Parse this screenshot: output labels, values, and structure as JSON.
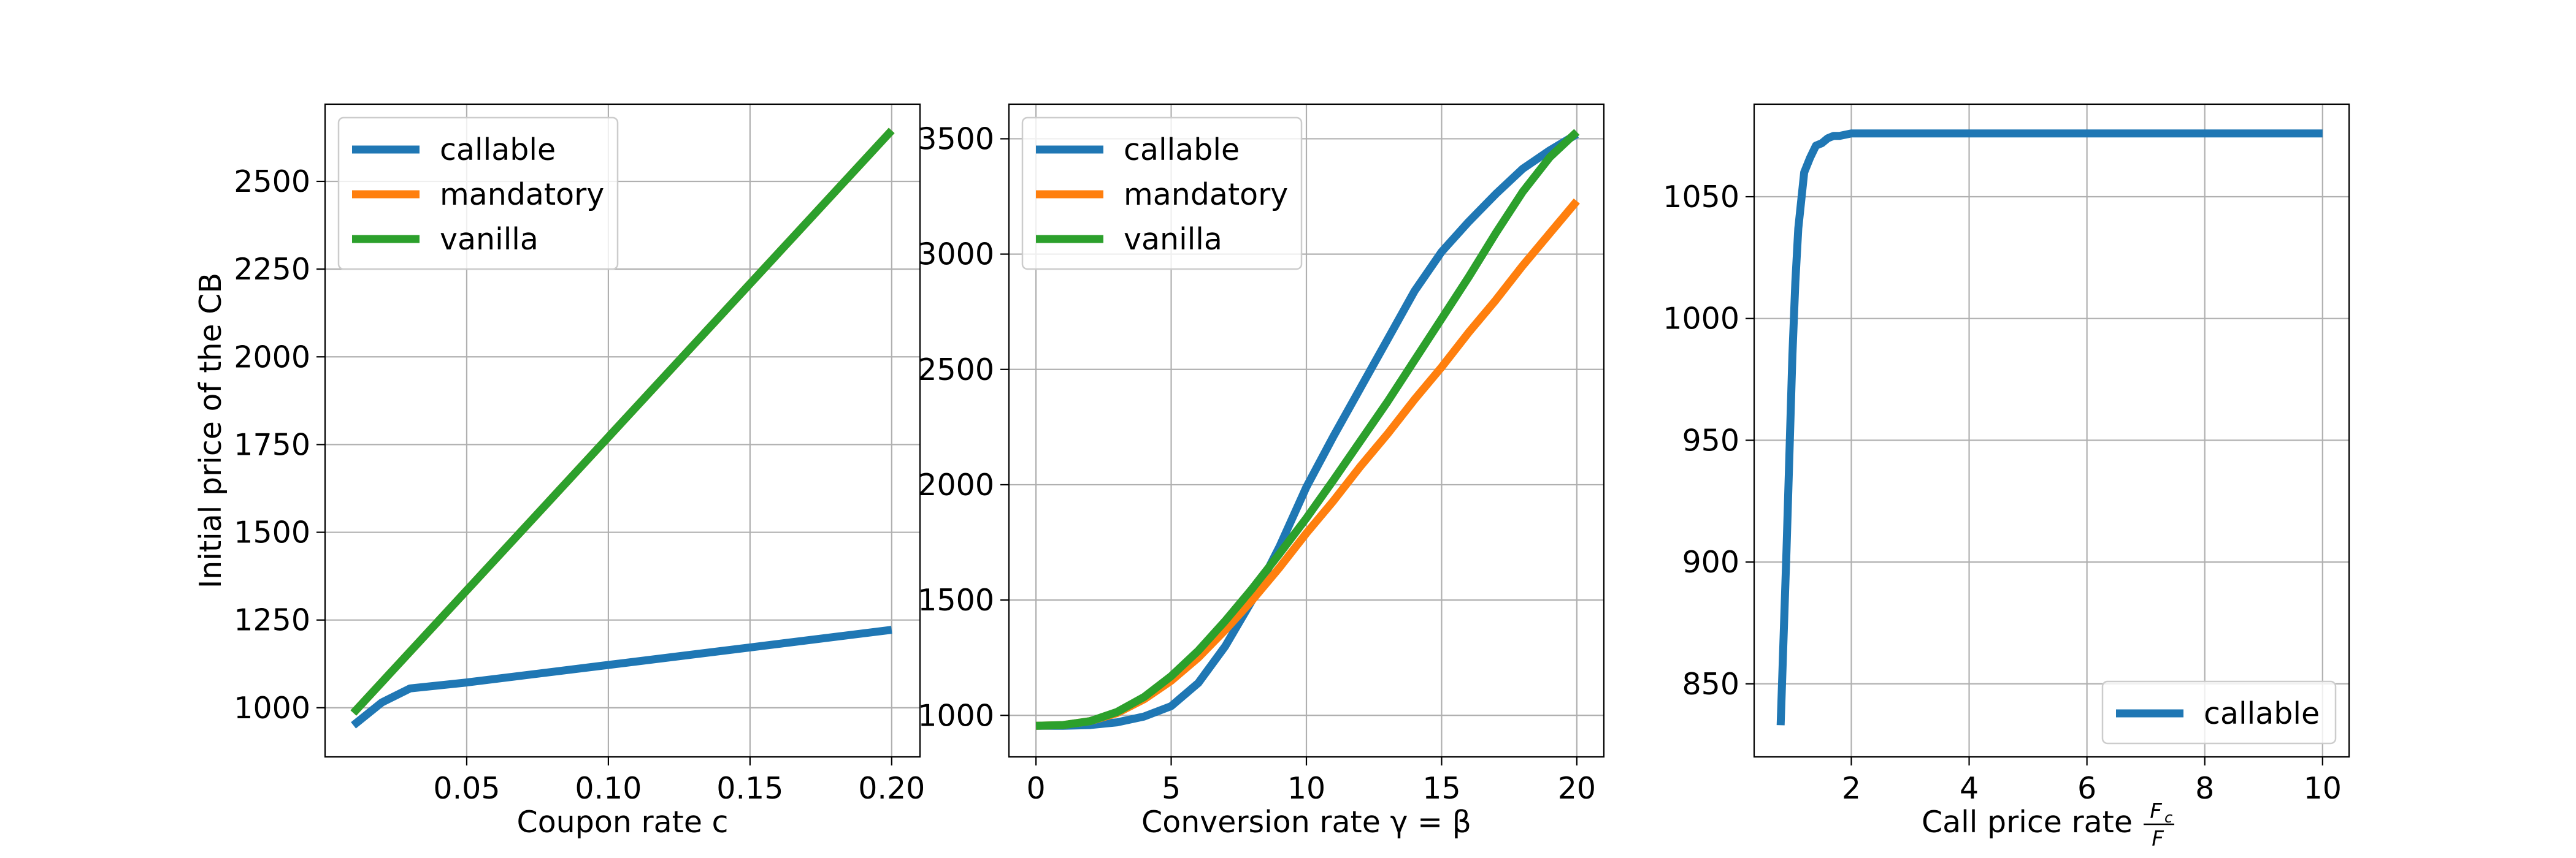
{
  "chart_data": [
    {
      "type": "line",
      "xlabel": "Coupon rate c",
      "ylabel": "Initial price of the CB",
      "xlim": [
        0.0,
        0.21
      ],
      "ylim": [
        860,
        2720
      ],
      "xticks": [
        0.05,
        0.1,
        0.15,
        0.2
      ],
      "xtick_labels": [
        "0.05",
        "0.10",
        "0.15",
        "0.20"
      ],
      "yticks": [
        1000,
        1250,
        1500,
        1750,
        2000,
        2250,
        2500
      ],
      "ytick_labels": [
        "1000",
        "1250",
        "1500",
        "1750",
        "2000",
        "2250",
        "2500"
      ],
      "grid": true,
      "legend": "upper left",
      "series": [
        {
          "name": "callable",
          "color": "#1f77b4",
          "x": [
            0.01,
            0.02,
            0.03,
            0.05,
            0.1,
            0.15,
            0.2
          ],
          "y": [
            950,
            1015,
            1055,
            1072,
            1122,
            1172,
            1222
          ]
        },
        {
          "name": "mandatory",
          "color": "#ff7f0e",
          "x": [
            0.01,
            0.2
          ],
          "y": [
            985,
            2645
          ]
        },
        {
          "name": "vanilla",
          "color": "#2ca02c",
          "x": [
            0.01,
            0.2
          ],
          "y": [
            985,
            2645
          ]
        }
      ]
    },
    {
      "type": "line",
      "xlabel": "Conversion rate γ = β",
      "ylabel": "",
      "xlim": [
        -1.0,
        21.0
      ],
      "ylim": [
        820,
        3650
      ],
      "xticks": [
        0,
        5,
        10,
        15,
        20
      ],
      "xtick_labels": [
        "0",
        "5",
        "10",
        "15",
        "20"
      ],
      "yticks": [
        1000,
        1500,
        2000,
        2500,
        3000,
        3500
      ],
      "ytick_labels": [
        "1000",
        "1500",
        "2000",
        "2500",
        "3000",
        "3500"
      ],
      "grid": true,
      "legend": "upper left",
      "series": [
        {
          "name": "callable",
          "color": "#1f77b4",
          "x": [
            0,
            1,
            2,
            3,
            4,
            5,
            6,
            7,
            8,
            9,
            10,
            11,
            12,
            13,
            14,
            15,
            16,
            17,
            18,
            19,
            20
          ],
          "y": [
            955,
            955,
            958,
            970,
            995,
            1040,
            1140,
            1300,
            1500,
            1730,
            1990,
            2210,
            2420,
            2630,
            2840,
            3010,
            3140,
            3260,
            3370,
            3450,
            3520
          ]
        },
        {
          "name": "mandatory",
          "color": "#ff7f0e",
          "x": [
            0,
            1,
            2,
            3,
            4,
            5,
            6,
            7,
            8,
            9,
            10,
            11,
            12,
            13,
            14,
            15,
            16,
            17,
            18,
            19,
            20
          ],
          "y": [
            955,
            958,
            975,
            1010,
            1070,
            1150,
            1250,
            1370,
            1500,
            1640,
            1790,
            1930,
            2080,
            2220,
            2370,
            2510,
            2660,
            2800,
            2950,
            3090,
            3230
          ]
        },
        {
          "name": "vanilla",
          "color": "#2ca02c",
          "x": [
            0,
            1,
            2,
            3,
            4,
            5,
            6,
            7,
            8,
            9,
            10,
            11,
            12,
            13,
            14,
            15,
            16,
            17,
            18,
            19,
            20
          ],
          "y": [
            955,
            958,
            975,
            1015,
            1080,
            1170,
            1280,
            1410,
            1550,
            1700,
            1855,
            2020,
            2190,
            2360,
            2540,
            2720,
            2900,
            3090,
            3270,
            3420,
            3530
          ]
        }
      ]
    },
    {
      "type": "line",
      "xlabel": "Call price rate",
      "xlabel_math": {
        "numerator": "F",
        "numerator_sub": "c",
        "denominator": "F"
      },
      "ylabel": "",
      "xlim": [
        0.35,
        10.45
      ],
      "ylim": [
        820,
        1088
      ],
      "xticks": [
        2,
        4,
        6,
        8,
        10
      ],
      "xtick_labels": [
        "2",
        "4",
        "6",
        "8",
        "10"
      ],
      "yticks": [
        850,
        900,
        950,
        1000,
        1050
      ],
      "ytick_labels": [
        "850",
        "900",
        "950",
        "1000",
        "1050"
      ],
      "grid": true,
      "legend": "lower right",
      "series": [
        {
          "name": "callable",
          "color": "#1f77b4",
          "x": [
            0.8,
            0.9,
            1.0,
            1.05,
            1.1,
            1.2,
            1.3,
            1.4,
            1.5,
            1.6,
            1.7,
            1.8,
            2.0,
            2.5,
            10.0
          ],
          "y": [
            833,
            905,
            985,
            1015,
            1037,
            1060,
            1066,
            1071,
            1072,
            1074,
            1075,
            1075,
            1076,
            1076,
            1076
          ]
        }
      ]
    }
  ]
}
